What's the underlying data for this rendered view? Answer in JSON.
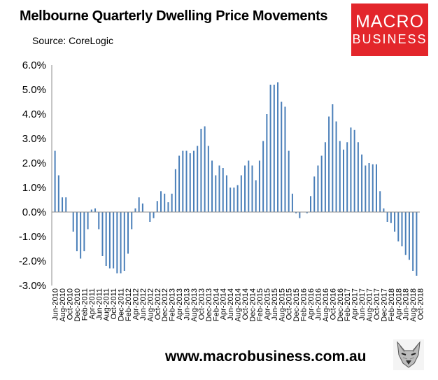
{
  "header": {
    "title": "Melbourne Quarterly Dwelling Price Movements",
    "source": "Source: CoreLogic"
  },
  "logo": {
    "line1": "MACRO",
    "line2": "BUSINESS",
    "bg_color": "#e3262b"
  },
  "footer": {
    "url": "www.macrobusiness.com.au",
    "icon": "fox-head-icon"
  },
  "chart_data": {
    "type": "bar",
    "title": "Melbourne Quarterly Dwelling Price Movements",
    "color": "#4a7fb9",
    "ylim": [
      -3.0,
      6.0
    ],
    "y_ticks": [
      "-3.0%",
      "-2.0%",
      "-1.0%",
      "0.0%",
      "1.0%",
      "2.0%",
      "3.0%",
      "4.0%",
      "5.0%",
      "6.0%"
    ],
    "x_tick_labels": [
      "Jun-2010",
      "Aug-2010",
      "Oct-2010",
      "Dec-2010",
      "Feb-2011",
      "Apr-2011",
      "Jun-2011",
      "Aug-2011",
      "Oct-2011",
      "Dec-2011",
      "Feb-2012",
      "Apr-2012",
      "Jun-2012",
      "Aug-2012",
      "Oct-2012",
      "Dec-2012",
      "Feb-2013",
      "Apr-2013",
      "Jun-2013",
      "Aug-2013",
      "Oct-2013",
      "Dec-2013",
      "Feb-2014",
      "Apr-2014",
      "Jun-2014",
      "Aug-2014",
      "Oct-2014",
      "Dec-2014",
      "Feb-2015",
      "Apr-2015",
      "Jun-2015",
      "Aug-2015",
      "Oct-2015",
      "Dec-2015",
      "Feb-2016",
      "Apr-2016",
      "Jun-2016",
      "Aug-2016",
      "Oct-2016",
      "Dec-2016",
      "Feb-2017",
      "Apr-2017",
      "Jun-2017",
      "Aug-2017",
      "Oct-2017",
      "Dec-2017",
      "Feb-2018",
      "Apr-2018",
      "Jun-2018",
      "Aug-2018",
      "Oct-2018"
    ],
    "values": [
      2.5,
      1.5,
      0.6,
      0.6,
      0,
      -0.8,
      -1.6,
      -1.9,
      -1.6,
      -0.7,
      0.1,
      0.15,
      -0.7,
      -1.8,
      -2.2,
      -2.3,
      -2.3,
      -2.5,
      -2.5,
      -2.4,
      -1.7,
      -0.7,
      0.15,
      0.6,
      0.35,
      0,
      -0.4,
      -0.25,
      0.45,
      0.85,
      0.75,
      0.4,
      0.75,
      1.75,
      2.3,
      2.5,
      2.5,
      2.4,
      2.5,
      2.7,
      3.4,
      3.5,
      2.7,
      2.1,
      1.5,
      1.9,
      1.8,
      1.5,
      1.0,
      1.0,
      1.1,
      1.5,
      1.9,
      2.1,
      1.9,
      1.3,
      2.1,
      2.9,
      4.0,
      5.2,
      5.2,
      5.3,
      4.5,
      4.3,
      2.5,
      0.75,
      -0.05,
      -0.25,
      0,
      -0.05,
      0.65,
      1.45,
      1.9,
      2.3,
      2.85,
      3.9,
      4.4,
      3.7,
      2.9,
      2.55,
      2.85,
      3.45,
      3.35,
      2.85,
      2.35,
      1.9,
      2.0,
      1.95,
      1.95,
      0.85,
      0.15,
      -0.4,
      -0.45,
      -0.8,
      -1.2,
      -1.4,
      -1.75,
      -1.95,
      -2.4,
      -2.6
    ]
  }
}
